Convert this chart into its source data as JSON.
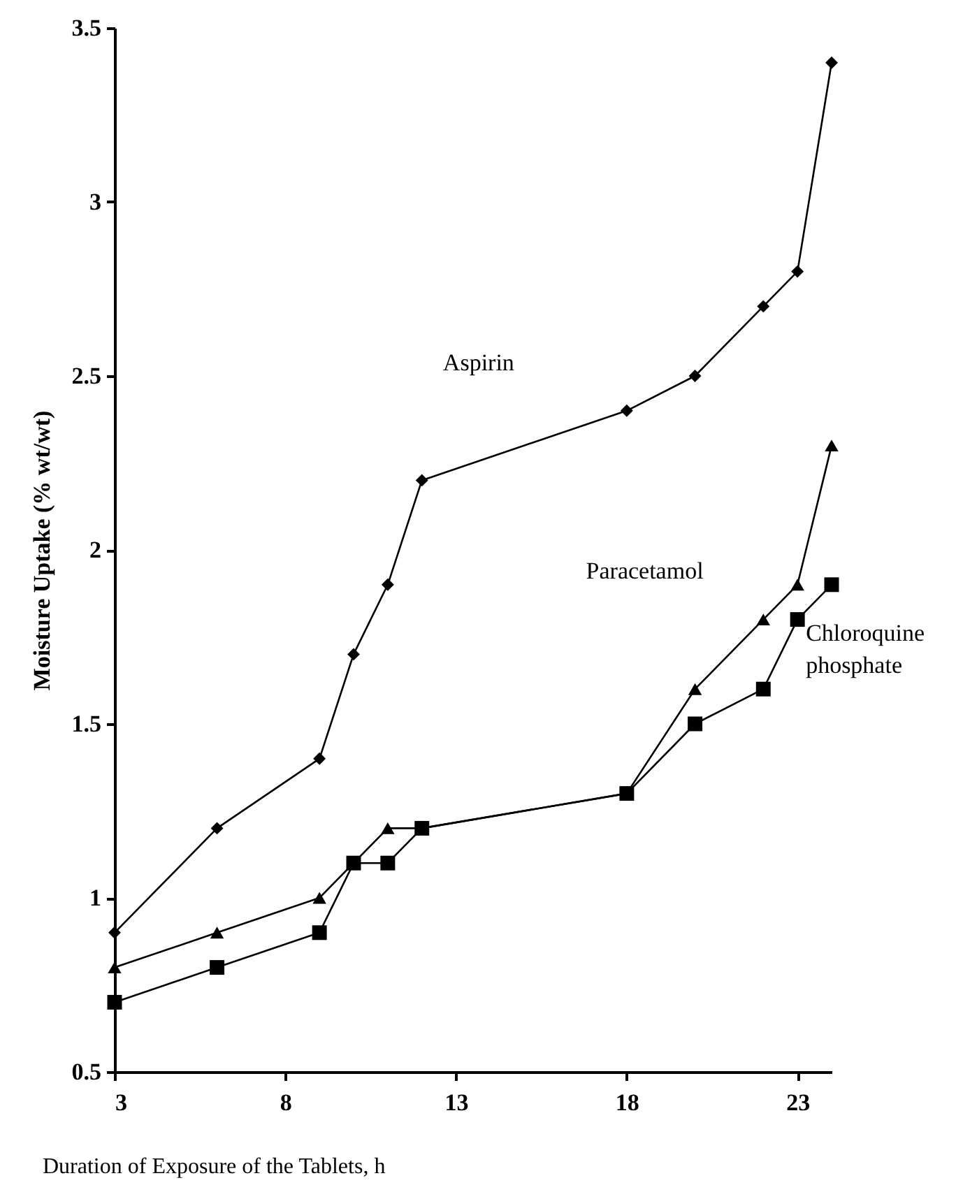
{
  "chart_data": {
    "type": "line",
    "xlabel": "Duration of Exposure of the Tablets, h",
    "ylabel": "Moisture Uptake (% wt/wt)",
    "x": [
      3,
      6,
      9,
      10,
      11,
      12,
      18,
      20,
      22,
      23,
      24
    ],
    "series": [
      {
        "name": "Aspirin",
        "color": "#000000",
        "marker": "diamond",
        "values": [
          0.9,
          1.2,
          1.4,
          1.7,
          1.9,
          2.2,
          2.4,
          2.5,
          2.7,
          2.8,
          3.4
        ]
      },
      {
        "name": "Paracetamol",
        "color": "#000000",
        "marker": "triangle",
        "values": [
          0.8,
          0.9,
          1.0,
          1.1,
          1.2,
          1.2,
          1.3,
          1.6,
          1.8,
          1.9,
          2.3
        ]
      },
      {
        "name": "Chloroquine phosphate",
        "color": "#000000",
        "marker": "square",
        "values": [
          0.7,
          0.8,
          0.9,
          1.1,
          1.1,
          1.2,
          1.3,
          1.5,
          1.6,
          1.8,
          1.9
        ]
      }
    ],
    "xlim": [
      3,
      24
    ],
    "xticks": [
      3,
      8,
      13,
      18,
      23
    ],
    "ylim": [
      0.5,
      3.5
    ],
    "yticks": [
      0.5,
      1,
      1.5,
      2,
      2.5,
      3,
      3.5
    ],
    "grid": false
  }
}
